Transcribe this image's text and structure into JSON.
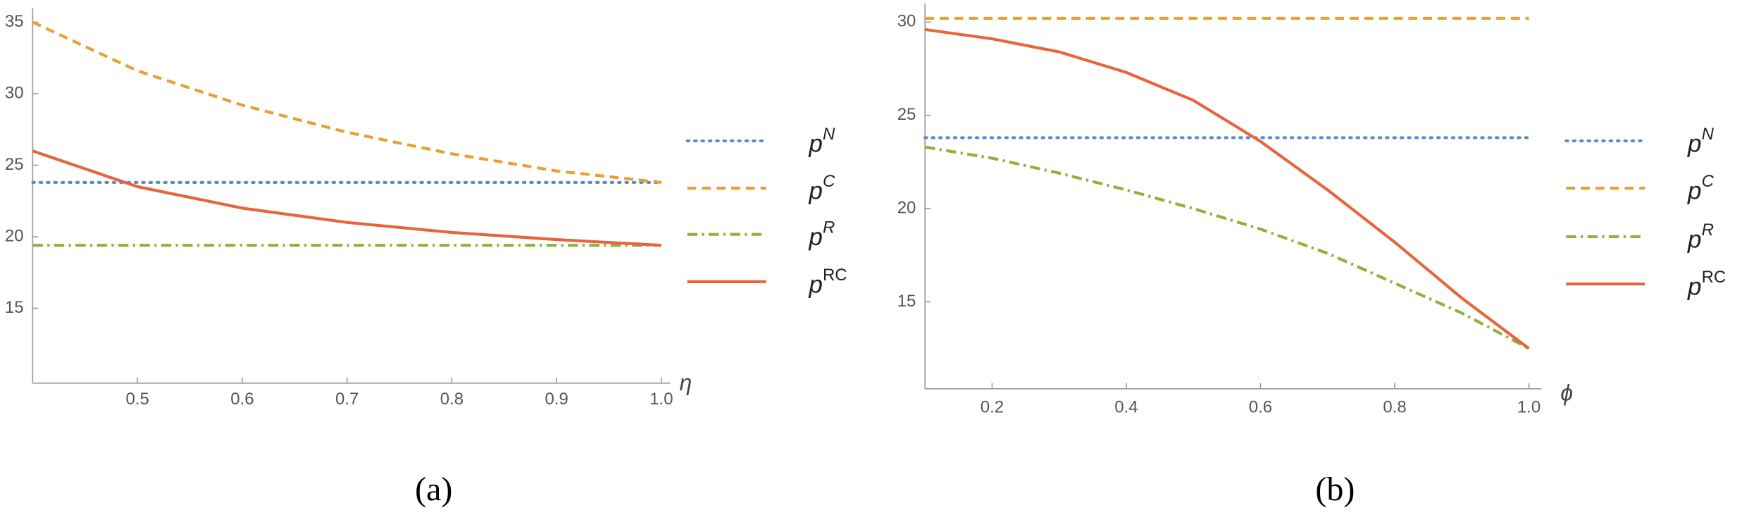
{
  "chart_data": [
    {
      "type": "line",
      "caption": "(a)",
      "x_label": "η",
      "x": [
        0.4,
        0.5,
        0.6,
        0.7,
        0.8,
        0.9,
        1.0
      ],
      "xlim": [
        0.4,
        1.0
      ],
      "xticks": [
        0.5,
        0.6,
        0.7,
        0.8,
        0.9,
        {
          "value": 1,
          "label": "1.0"
        }
      ],
      "ylim": [
        10,
        36
      ],
      "yticks": [
        15,
        20,
        25,
        30,
        35
      ],
      "grid": false,
      "series": [
        {
          "name": "pN",
          "color": "#5b8bc5",
          "style": "dotted",
          "values": [
            23.8,
            23.8,
            23.8,
            23.8,
            23.8,
            23.8,
            23.8
          ]
        },
        {
          "name": "pC",
          "color": "#e8a030",
          "style": "dashed",
          "values": [
            35.0,
            31.6,
            29.2,
            27.3,
            25.8,
            24.6,
            23.8
          ]
        },
        {
          "name": "pR",
          "color": "#8db33a",
          "style": "dashdot",
          "values": [
            19.4,
            19.4,
            19.4,
            19.4,
            19.4,
            19.4,
            19.4
          ]
        },
        {
          "name": "pRC",
          "color": "#e8643c",
          "style": "solid",
          "values": [
            26.0,
            23.5,
            22.0,
            21.0,
            20.3,
            19.8,
            19.4
          ]
        }
      ]
    },
    {
      "type": "line",
      "caption": "(b)",
      "x_label": "ϕ",
      "x": [
        0.1,
        0.2,
        0.3,
        0.4,
        0.5,
        0.6,
        0.7,
        0.8,
        0.9,
        1.0
      ],
      "xlim": [
        0.1,
        1.0
      ],
      "xticks": [
        0.2,
        0.4,
        0.6,
        0.8,
        {
          "value": 1,
          "label": "1.0"
        }
      ],
      "ylim": [
        10.4,
        31
      ],
      "yticks": [
        15,
        20,
        25,
        30
      ],
      "grid": false,
      "series": [
        {
          "name": "pN",
          "color": "#5b8bc5",
          "style": "dotted",
          "values": [
            23.8,
            23.8,
            23.8,
            23.8,
            23.8,
            23.8,
            23.8,
            23.8,
            23.8,
            23.8
          ]
        },
        {
          "name": "pC",
          "color": "#e8a030",
          "style": "dashed",
          "values": [
            30.2,
            30.2,
            30.2,
            30.2,
            30.2,
            30.2,
            30.2,
            30.2,
            30.2,
            30.2
          ]
        },
        {
          "name": "pR",
          "color": "#8db33a",
          "style": "dashdot",
          "values": [
            23.3,
            22.7,
            21.9,
            21.0,
            20.0,
            18.9,
            17.6,
            16.0,
            14.4,
            12.5
          ]
        },
        {
          "name": "pRC",
          "color": "#e8643c",
          "style": "solid",
          "values": [
            29.6,
            29.1,
            28.4,
            27.3,
            25.8,
            23.6,
            21.0,
            18.2,
            15.2,
            12.5
          ]
        }
      ]
    }
  ]
}
